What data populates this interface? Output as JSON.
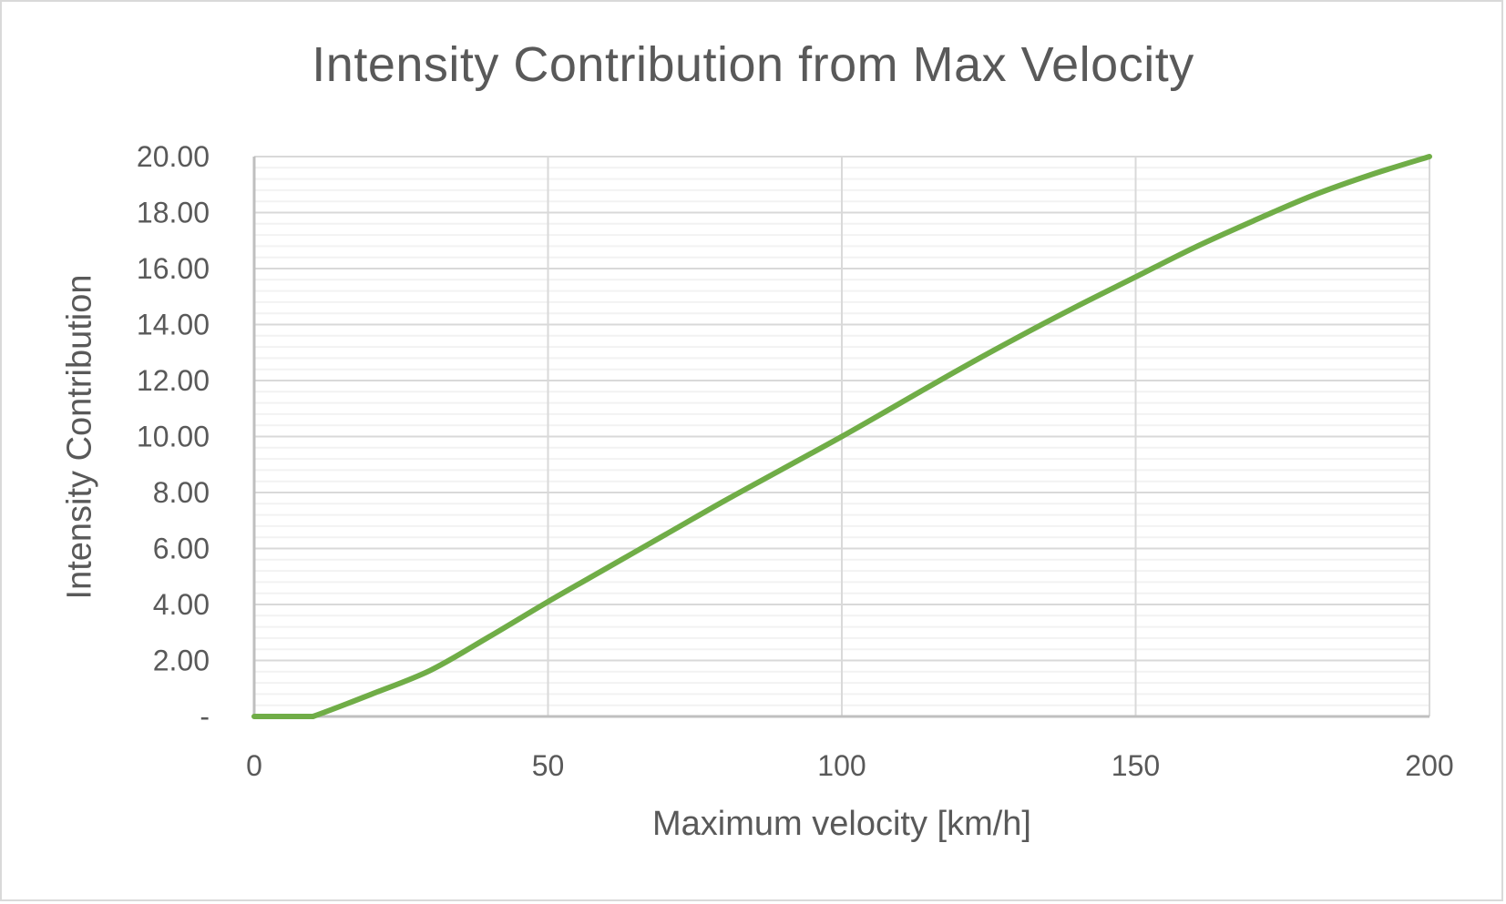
{
  "chart_data": {
    "type": "line",
    "title": "Intensity Contribution from Max Velocity",
    "xlabel": "Maximum velocity [km/h]",
    "ylabel": "Intensity Contribution",
    "xlim": [
      0,
      200
    ],
    "ylim": [
      0,
      20
    ],
    "x_ticks": [
      0,
      50,
      100,
      150,
      200
    ],
    "x_tick_labels": [
      "0",
      "50",
      "100",
      "150",
      "200"
    ],
    "y_ticks": [
      0,
      2,
      4,
      6,
      8,
      10,
      12,
      14,
      16,
      18,
      20
    ],
    "y_tick_labels": [
      "-",
      "2.00",
      "4.00",
      "6.00",
      "8.00",
      "10.00",
      "12.00",
      "14.00",
      "16.00",
      "18.00",
      "20.00"
    ],
    "grid": {
      "major_x": true,
      "major_y": true,
      "minor_y": true,
      "minor_y_step": 0.4
    },
    "legend": "none",
    "series": [
      {
        "name": "Intensity Contribution",
        "color": "#70ad47",
        "x": [
          0,
          10,
          20,
          30,
          40,
          50,
          60,
          70,
          80,
          90,
          100,
          110,
          120,
          130,
          140,
          150,
          160,
          170,
          180,
          190,
          200
        ],
        "values": [
          0,
          0,
          0.8,
          1.65,
          2.85,
          4.1,
          5.3,
          6.5,
          7.7,
          8.85,
          10.0,
          11.2,
          12.4,
          13.55,
          14.65,
          15.7,
          16.75,
          17.7,
          18.6,
          19.35,
          20.0
        ]
      }
    ]
  },
  "colors": {
    "text": "#595959",
    "major_grid": "#d9d9d9",
    "minor_grid": "#f2f2f2",
    "axis": "#bfbfbf",
    "border": "#d9d9d9"
  }
}
